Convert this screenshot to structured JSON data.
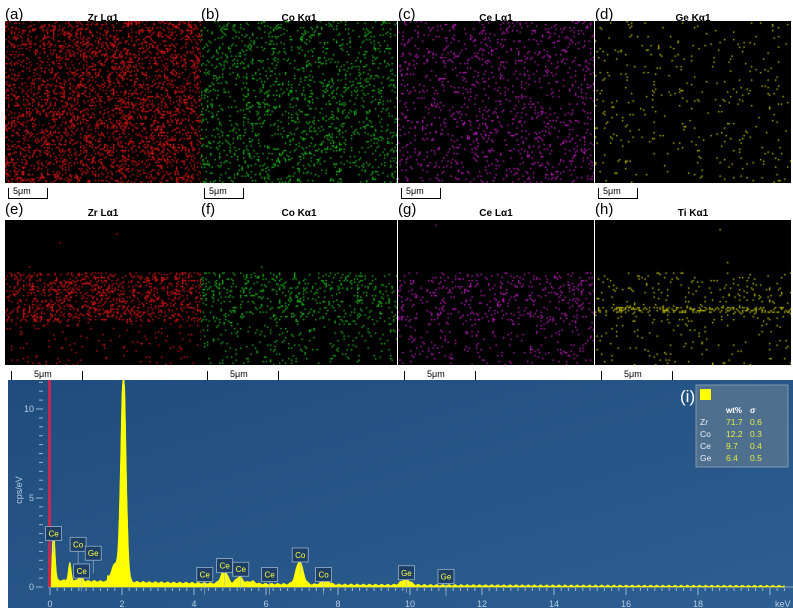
{
  "panels": [
    {
      "label": "(a)",
      "title": "Zr Lα1",
      "color": "#ff1a1a",
      "scale": "5μm",
      "row": 1,
      "density": 0.45
    },
    {
      "label": "(b)",
      "title": "Co Kα1",
      "color": "#22dd22",
      "scale": "5μm",
      "row": 1,
      "density": 0.22
    },
    {
      "label": "(c)",
      "title": "Ce Lα1",
      "color": "#e020e0",
      "scale": "5μm",
      "row": 1,
      "density": 0.16
    },
    {
      "label": "(d)",
      "title": "Ge Kα1",
      "color": "#e0e000",
      "scale": "5μm",
      "row": 1,
      "density": 0.05
    },
    {
      "label": "(e)",
      "title": "Zr Lα1",
      "color": "#ff1a1a",
      "scale": "5μm",
      "row": 2,
      "density": 0.45
    },
    {
      "label": "(f)",
      "title": "Co Kα1",
      "color": "#22dd22",
      "scale": "5μm",
      "row": 2,
      "density": 0.25
    },
    {
      "label": "(g)",
      "title": "Ce Lα1",
      "color": "#e020e0",
      "scale": "5μm",
      "row": 2,
      "density": 0.2
    },
    {
      "label": "(h)",
      "title": "Ti Kα1",
      "color": "#e0e000",
      "scale": "5μm",
      "row": 2,
      "density": 0.12
    }
  ],
  "chart_data": {
    "type": "area",
    "panel_label": "(i)",
    "xlabel": "keV",
    "ylabel": "cps/eV",
    "xlim": [
      0,
      20.5
    ],
    "ylim": [
      0,
      11.5
    ],
    "xticks": [
      0,
      2,
      4,
      6,
      8,
      10,
      12,
      14,
      16,
      18
    ],
    "yticks": [
      0,
      5,
      10
    ],
    "background": "#1f4c7c",
    "series_color": "#ffff00",
    "marker_line_color": "#e0204a",
    "peaks": [
      {
        "x": 0.1,
        "y": 3.0
      },
      {
        "x": 0.55,
        "y": 1.0
      },
      {
        "x": 0.85,
        "y": 0.7
      },
      {
        "x": 1.8,
        "y": 0.7
      },
      {
        "x": 2.04,
        "y": 12.5
      },
      {
        "x": 4.84,
        "y": 0.8
      },
      {
        "x": 5.26,
        "y": 0.4
      },
      {
        "x": 5.6,
        "y": 0.15
      },
      {
        "x": 6.93,
        "y": 1.3
      },
      {
        "x": 7.65,
        "y": 0.25
      },
      {
        "x": 9.88,
        "y": 0.35
      }
    ],
    "peak_labels": [
      {
        "text": "Ce",
        "x": 0.1,
        "y": 3.0
      },
      {
        "text": "Co",
        "x": 0.78,
        "y": 2.4
      },
      {
        "text": "Ge",
        "x": 1.2,
        "y": 1.9
      },
      {
        "text": "Ce",
        "x": 0.88,
        "y": 0.9
      },
      {
        "text": "Ce",
        "x": 4.3,
        "y": 0.7
      },
      {
        "text": "Ce",
        "x": 4.85,
        "y": 1.2
      },
      {
        "text": "Ce",
        "x": 5.3,
        "y": 1.0
      },
      {
        "text": "Ce",
        "x": 6.1,
        "y": 0.7
      },
      {
        "text": "Co",
        "x": 6.95,
        "y": 1.8
      },
      {
        "text": "Co",
        "x": 7.6,
        "y": 0.7
      },
      {
        "text": "Ge",
        "x": 9.9,
        "y": 0.8
      },
      {
        "text": "Ge",
        "x": 11.0,
        "y": 0.6
      }
    ],
    "table": {
      "headers": [
        "",
        "wt%",
        "σ"
      ],
      "rows": [
        [
          "Zr",
          "71.7",
          "0.6"
        ],
        [
          "Co",
          "12.2",
          "0.3"
        ],
        [
          "Ce",
          "9.7",
          "0.4"
        ],
        [
          "Ge",
          "6.4",
          "0.5"
        ]
      ]
    }
  }
}
